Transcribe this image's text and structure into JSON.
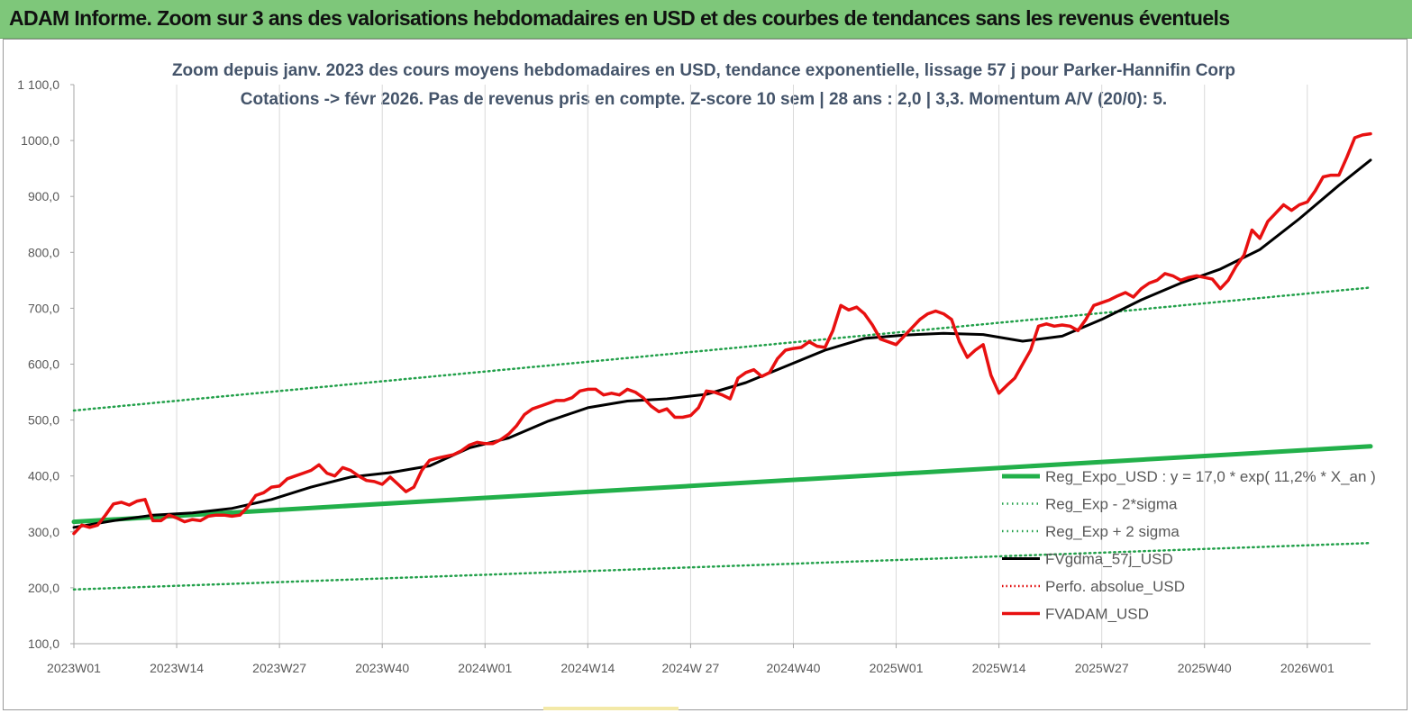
{
  "header": {
    "title": "ADAM Informe. Zoom sur 3 ans des valorisations hebdomadaires en USD et des courbes de tendances sans les revenus éventuels"
  },
  "colors": {
    "header_bg": "#7ec77a",
    "regression": "#22b04a",
    "sigma_bands": "#22a04a",
    "fvgdma": "#000000",
    "perfo": "#e00000",
    "fvadam": "#e81010"
  },
  "chart_data": {
    "type": "line",
    "subtitle_line1": "Zoom depuis janv. 2023 des cours moyens hebdomadaires en USD, tendance exponentielle, lissage 57 j pour Parker-Hannifin Corp",
    "subtitle_line2": "Cotations -> févr 2026. Pas de revenus pris en compte. Z-score 10 sem | 28 ans : 2,0 | 3,3. Momentum A/V (20/0): 5.",
    "x_tick_labels": [
      "2023W01",
      "2023W14",
      "2023W27",
      "2023W40",
      "2024W01",
      "2024W14",
      "2024W 27",
      "2024W40",
      "2025W01",
      "2025W14",
      "2025W27",
      "2025W40",
      "2026W01"
    ],
    "x_tick_weeks": [
      0,
      13,
      26,
      39,
      52,
      65,
      78,
      91,
      104,
      117,
      130,
      143,
      156
    ],
    "x_range_weeks": [
      0,
      164
    ],
    "ylim": [
      100,
      1100
    ],
    "y_ticks": [
      100,
      200,
      300,
      400,
      500,
      600,
      700,
      800,
      900,
      1000,
      1100
    ],
    "y_tick_labels": [
      "100,0",
      "200,0",
      "300,0",
      "400,0",
      "500,0",
      "600,0",
      "700,0",
      "800,0",
      "900,0",
      "1000,0",
      "1 100,0"
    ],
    "grid": "vertical",
    "legend_position": "bottom-right",
    "series": [
      {
        "name": "Reg_Expo_USD : y = 17,0 * exp( 11,2% *  X_an )",
        "style": "thick-solid",
        "x": [
          0,
          164
        ],
        "y": [
          318,
          453
        ]
      },
      {
        "name": "Reg_Exp - 2*sigma",
        "style": "dotted",
        "x": [
          0,
          164
        ],
        "y": [
          197,
          280
        ]
      },
      {
        "name": "Reg_Exp + 2 sigma",
        "style": "dotted",
        "x": [
          0,
          164
        ],
        "y": [
          517,
          737
        ]
      },
      {
        "name": "FVgdma_57j_USD",
        "style": "solid",
        "x": [
          0,
          5,
          10,
          15,
          20,
          25,
          30,
          35,
          40,
          45,
          50,
          55,
          60,
          65,
          70,
          75,
          80,
          85,
          90,
          95,
          100,
          105,
          110,
          115,
          120,
          125,
          130,
          135,
          140,
          145,
          150,
          155,
          160,
          164
        ],
        "y": [
          308,
          320,
          330,
          334,
          342,
          358,
          380,
          398,
          406,
          418,
          450,
          468,
          498,
          522,
          534,
          538,
          546,
          567,
          596,
          625,
          646,
          652,
          655,
          653,
          641,
          650,
          680,
          715,
          745,
          770,
          805,
          860,
          920,
          965
        ]
      },
      {
        "name": "Perfo. absolue_USD",
        "style": "dotted",
        "x": [],
        "y": []
      },
      {
        "name": "FVADAM_USD",
        "style": "thick-solid",
        "x": [
          0,
          1,
          2,
          3,
          4,
          5,
          6,
          7,
          8,
          9,
          10,
          11,
          12,
          13,
          14,
          15,
          16,
          17,
          18,
          19,
          20,
          21,
          22,
          23,
          24,
          25,
          26,
          27,
          28,
          29,
          30,
          31,
          32,
          33,
          34,
          35,
          36,
          37,
          38,
          39,
          40,
          41,
          42,
          43,
          44,
          45,
          46,
          47,
          48,
          49,
          50,
          51,
          52,
          53,
          54,
          55,
          56,
          57,
          58,
          59,
          60,
          61,
          62,
          63,
          64,
          65,
          66,
          67,
          68,
          69,
          70,
          71,
          72,
          73,
          74,
          75,
          76,
          77,
          78,
          79,
          80,
          81,
          82,
          83,
          84,
          85,
          86,
          87,
          88,
          89,
          90,
          91,
          92,
          93,
          94,
          95,
          96,
          97,
          98,
          99,
          100,
          101,
          102,
          103,
          104,
          105,
          106,
          107,
          108,
          109,
          110,
          111,
          112,
          113,
          114,
          115,
          116,
          117,
          118,
          119,
          120,
          121,
          122,
          123,
          124,
          125,
          126,
          127,
          128,
          129,
          130,
          131,
          132,
          133,
          134,
          135,
          136,
          137,
          138,
          139,
          140,
          141,
          142,
          143,
          144,
          145,
          146,
          147,
          148,
          149,
          150,
          151,
          152,
          153,
          154,
          155,
          156,
          157,
          158,
          159,
          160,
          161,
          162,
          163,
          164
        ],
        "y": [
          297,
          312,
          308,
          312,
          330,
          350,
          353,
          348,
          355,
          358,
          320,
          320,
          330,
          325,
          318,
          322,
          320,
          328,
          330,
          330,
          328,
          330,
          345,
          365,
          370,
          380,
          382,
          395,
          400,
          405,
          410,
          420,
          405,
          400,
          415,
          410,
          400,
          392,
          390,
          385,
          398,
          385,
          372,
          380,
          410,
          428,
          432,
          435,
          438,
          445,
          455,
          460,
          458,
          458,
          465,
          475,
          490,
          510,
          520,
          525,
          530,
          535,
          535,
          540,
          552,
          555,
          555,
          545,
          548,
          545,
          555,
          550,
          540,
          525,
          515,
          520,
          505,
          505,
          508,
          522,
          552,
          550,
          545,
          538,
          575,
          585,
          590,
          578,
          585,
          610,
          625,
          628,
          630,
          640,
          632,
          630,
          660,
          705,
          697,
          702,
          690,
          670,
          645,
          640,
          635,
          650,
          665,
          680,
          690,
          695,
          690,
          680,
          640,
          612,
          625,
          635,
          580,
          548,
          562,
          575,
          600,
          625,
          668,
          672,
          668,
          670,
          668,
          660,
          680,
          705,
          710,
          715,
          722,
          728,
          720,
          735,
          745,
          750,
          762,
          758,
          750,
          755,
          758,
          755,
          752,
          735,
          750,
          775,
          795,
          840,
          825,
          855,
          870,
          885,
          875,
          885,
          890,
          910,
          935,
          938,
          938,
          970,
          1005,
          1010,
          1012
        ]
      }
    ]
  }
}
